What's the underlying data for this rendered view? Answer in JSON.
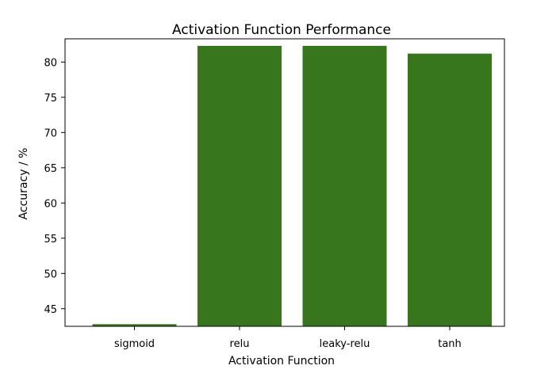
{
  "chart_data": {
    "type": "bar",
    "title": "Activation Function Performance",
    "xlabel": "Activation Function",
    "ylabel": "Accuracy / %",
    "categories": [
      "sigmoid",
      "relu",
      "leaky-relu",
      "tanh"
    ],
    "values": [
      42.8,
      82.3,
      82.3,
      81.2
    ],
    "ylim": [
      42.5,
      83.3
    ],
    "yticks": [
      45,
      50,
      55,
      60,
      65,
      70,
      75,
      80
    ],
    "grid": false,
    "colors": {
      "bar": "#38761d",
      "axis": "#000000",
      "background": "#ffffff"
    }
  }
}
